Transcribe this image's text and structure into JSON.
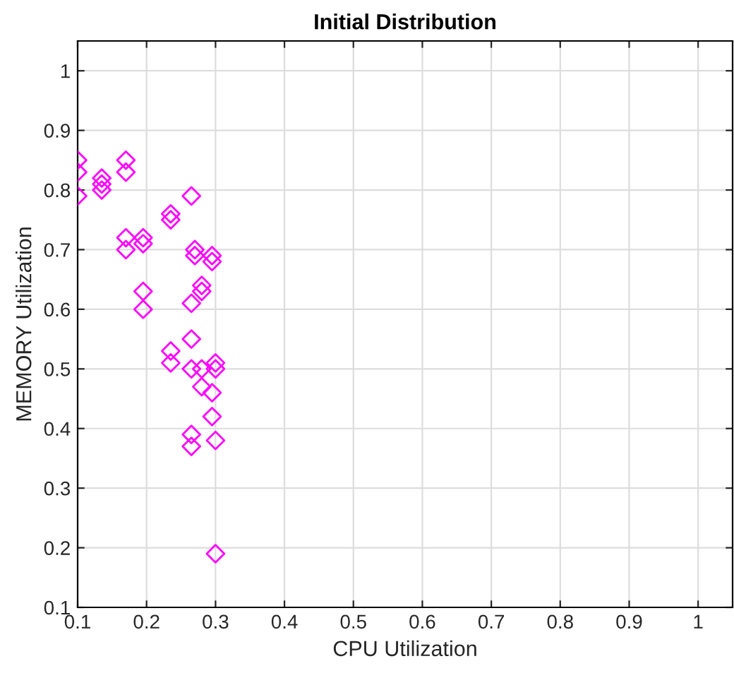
{
  "chart_data": {
    "type": "scatter",
    "title": "Initial Distribution",
    "xlabel": "CPU Utilization",
    "ylabel": "MEMORY Utilization",
    "x": [
      0.1,
      0.1,
      0.1,
      0.135,
      0.135,
      0.135,
      0.17,
      0.17,
      0.17,
      0.17,
      0.195,
      0.195,
      0.195,
      0.195,
      0.235,
      0.235,
      0.235,
      0.235,
      0.265,
      0.265,
      0.265,
      0.265,
      0.265,
      0.265,
      0.27,
      0.27,
      0.28,
      0.28,
      0.28,
      0.28,
      0.295,
      0.295,
      0.295,
      0.295,
      0.3,
      0.3,
      0.3,
      0.3
    ],
    "values": [
      0.85,
      0.83,
      0.79,
      0.82,
      0.81,
      0.8,
      0.85,
      0.83,
      0.72,
      0.7,
      0.72,
      0.71,
      0.63,
      0.6,
      0.76,
      0.75,
      0.53,
      0.51,
      0.79,
      0.61,
      0.55,
      0.5,
      0.39,
      0.37,
      0.7,
      0.69,
      0.64,
      0.63,
      0.5,
      0.47,
      0.69,
      0.68,
      0.46,
      0.42,
      0.51,
      0.5,
      0.38,
      0.19
    ],
    "color": "#ff00ff",
    "marker": "diamond",
    "grid": true,
    "xlim": [
      0.1,
      1.05
    ],
    "ylim": [
      0.1,
      1.05
    ],
    "xticks": [
      0.1,
      0.2,
      0.3,
      0.4,
      0.5,
      0.6,
      0.7,
      0.8,
      0.9,
      1
    ],
    "yticks": [
      0.1,
      0.2,
      0.3,
      0.4,
      0.5,
      0.6,
      0.7,
      0.8,
      0.9,
      1
    ]
  }
}
